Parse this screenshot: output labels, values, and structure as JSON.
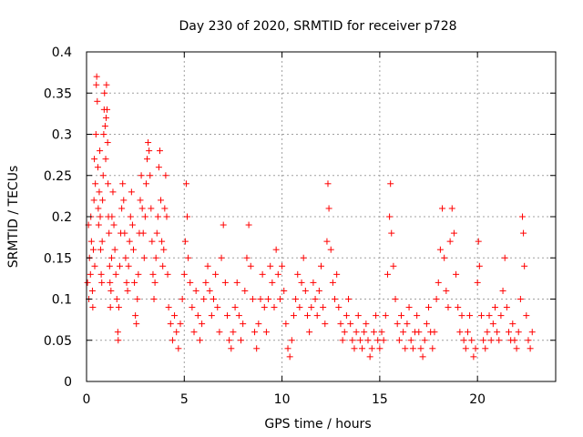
{
  "chart_data": {
    "type": "scatter",
    "title": "Day 230 of 2020, SRMTID for receiver p728",
    "xlabel": "GPS time / hours",
    "ylabel": "SRMTID / TECUs",
    "xlim": [
      0,
      24
    ],
    "ylim": [
      0,
      0.4
    ],
    "xticks": [
      0,
      5,
      10,
      15,
      20
    ],
    "xtick_labels": [
      "0",
      "5",
      "10",
      "15",
      "20"
    ],
    "yticks": [
      0,
      0.05,
      0.1,
      0.15,
      0.2,
      0.25,
      0.3,
      0.35,
      0.4
    ],
    "ytick_labels": [
      "0",
      "0.05",
      "0.1",
      "0.15",
      "0.2",
      "0.25",
      "0.3",
      "0.35",
      "0.4"
    ],
    "grid": true,
    "marker": "plus",
    "color": "#ff0000",
    "series": [
      {
        "name": "SRMTID",
        "points": [
          [
            0.05,
            0.12
          ],
          [
            0.1,
            0.19
          ],
          [
            0.12,
            0.1
          ],
          [
            0.15,
            0.15
          ],
          [
            0.2,
            0.13
          ],
          [
            0.22,
            0.2
          ],
          [
            0.25,
            0.17
          ],
          [
            0.3,
            0.11
          ],
          [
            0.32,
            0.09
          ],
          [
            0.35,
            0.16
          ],
          [
            0.38,
            0.22
          ],
          [
            0.4,
            0.27
          ],
          [
            0.42,
            0.14
          ],
          [
            0.45,
            0.24
          ],
          [
            0.48,
            0.3
          ],
          [
            0.5,
            0.36
          ],
          [
            0.52,
            0.37
          ],
          [
            0.55,
            0.34
          ],
          [
            0.58,
            0.26
          ],
          [
            0.6,
            0.21
          ],
          [
            0.62,
            0.19
          ],
          [
            0.65,
            0.23
          ],
          [
            0.68,
            0.28
          ],
          [
            0.7,
            0.2
          ],
          [
            0.72,
            0.16
          ],
          [
            0.75,
            0.13
          ],
          [
            0.78,
            0.12
          ],
          [
            0.8,
            0.17
          ],
          [
            0.82,
            0.22
          ],
          [
            0.85,
            0.25
          ],
          [
            0.88,
            0.3
          ],
          [
            0.9,
            0.33
          ],
          [
            0.92,
            0.35
          ],
          [
            0.95,
            0.31
          ],
          [
            0.98,
            0.27
          ],
          [
            1.0,
            0.32
          ],
          [
            1.02,
            0.36
          ],
          [
            1.05,
            0.33
          ],
          [
            1.08,
            0.29
          ],
          [
            1.1,
            0.24
          ],
          [
            1.12,
            0.2
          ],
          [
            1.15,
            0.18
          ],
          [
            1.18,
            0.14
          ],
          [
            1.2,
            0.12
          ],
          [
            1.22,
            0.09
          ],
          [
            1.25,
            0.11
          ],
          [
            1.28,
            0.15
          ],
          [
            1.3,
            0.2
          ],
          [
            1.35,
            0.23
          ],
          [
            1.4,
            0.19
          ],
          [
            1.45,
            0.16
          ],
          [
            1.5,
            0.13
          ],
          [
            1.55,
            0.1
          ],
          [
            1.6,
            0.06
          ],
          [
            1.62,
            0.05
          ],
          [
            1.65,
            0.09
          ],
          [
            1.7,
            0.14
          ],
          [
            1.75,
            0.18
          ],
          [
            1.8,
            0.21
          ],
          [
            1.85,
            0.24
          ],
          [
            1.9,
            0.22
          ],
          [
            1.95,
            0.18
          ],
          [
            2.0,
            0.15
          ],
          [
            2.05,
            0.12
          ],
          [
            2.1,
            0.11
          ],
          [
            2.15,
            0.14
          ],
          [
            2.2,
            0.17
          ],
          [
            2.25,
            0.2
          ],
          [
            2.3,
            0.23
          ],
          [
            2.35,
            0.19
          ],
          [
            2.4,
            0.16
          ],
          [
            2.45,
            0.12
          ],
          [
            2.5,
            0.08
          ],
          [
            2.55,
            0.07
          ],
          [
            2.6,
            0.1
          ],
          [
            2.65,
            0.13
          ],
          [
            2.7,
            0.18
          ],
          [
            2.75,
            0.22
          ],
          [
            2.8,
            0.25
          ],
          [
            2.85,
            0.21
          ],
          [
            2.9,
            0.18
          ],
          [
            2.95,
            0.15
          ],
          [
            3.0,
            0.2
          ],
          [
            3.05,
            0.24
          ],
          [
            3.1,
            0.27
          ],
          [
            3.15,
            0.29
          ],
          [
            3.2,
            0.28
          ],
          [
            3.25,
            0.25
          ],
          [
            3.3,
            0.21
          ],
          [
            3.35,
            0.17
          ],
          [
            3.4,
            0.13
          ],
          [
            3.45,
            0.1
          ],
          [
            3.5,
            0.12
          ],
          [
            3.55,
            0.15
          ],
          [
            3.6,
            0.18
          ],
          [
            3.65,
            0.2
          ],
          [
            3.7,
            0.26
          ],
          [
            3.75,
            0.28
          ],
          [
            3.8,
            0.22
          ],
          [
            3.85,
            0.17
          ],
          [
            3.9,
            0.14
          ],
          [
            3.95,
            0.16
          ],
          [
            4.0,
            0.21
          ],
          [
            4.05,
            0.25
          ],
          [
            4.1,
            0.2
          ],
          [
            4.15,
            0.13
          ],
          [
            4.2,
            0.09
          ],
          [
            4.3,
            0.07
          ],
          [
            4.4,
            0.05
          ],
          [
            4.5,
            0.08
          ],
          [
            4.6,
            0.06
          ],
          [
            4.7,
            0.04
          ],
          [
            4.8,
            0.07
          ],
          [
            4.9,
            0.1
          ],
          [
            5.0,
            0.13
          ],
          [
            5.05,
            0.17
          ],
          [
            5.1,
            0.24
          ],
          [
            5.15,
            0.2
          ],
          [
            5.2,
            0.15
          ],
          [
            5.3,
            0.12
          ],
          [
            5.4,
            0.09
          ],
          [
            5.5,
            0.06
          ],
          [
            5.6,
            0.11
          ],
          [
            5.7,
            0.08
          ],
          [
            5.8,
            0.05
          ],
          [
            5.9,
            0.07
          ],
          [
            6.0,
            0.1
          ],
          [
            6.1,
            0.12
          ],
          [
            6.2,
            0.14
          ],
          [
            6.3,
            0.11
          ],
          [
            6.4,
            0.08
          ],
          [
            6.5,
            0.1
          ],
          [
            6.6,
            0.13
          ],
          [
            6.7,
            0.09
          ],
          [
            6.8,
            0.06
          ],
          [
            6.9,
            0.15
          ],
          [
            7.0,
            0.19
          ],
          [
            7.1,
            0.12
          ],
          [
            7.2,
            0.08
          ],
          [
            7.3,
            0.05
          ],
          [
            7.4,
            0.04
          ],
          [
            7.5,
            0.06
          ],
          [
            7.6,
            0.09
          ],
          [
            7.7,
            0.12
          ],
          [
            7.8,
            0.08
          ],
          [
            7.9,
            0.05
          ],
          [
            8.0,
            0.07
          ],
          [
            8.1,
            0.11
          ],
          [
            8.2,
            0.15
          ],
          [
            8.3,
            0.19
          ],
          [
            8.4,
            0.14
          ],
          [
            8.5,
            0.1
          ],
          [
            8.6,
            0.06
          ],
          [
            8.7,
            0.04
          ],
          [
            8.8,
            0.07
          ],
          [
            8.9,
            0.1
          ],
          [
            9.0,
            0.13
          ],
          [
            9.1,
            0.09
          ],
          [
            9.2,
            0.06
          ],
          [
            9.3,
            0.1
          ],
          [
            9.4,
            0.14
          ],
          [
            9.5,
            0.12
          ],
          [
            9.6,
            0.09
          ],
          [
            9.7,
            0.16
          ],
          [
            9.8,
            0.13
          ],
          [
            9.9,
            0.1
          ],
          [
            10.0,
            0.14
          ],
          [
            10.1,
            0.11
          ],
          [
            10.2,
            0.07
          ],
          [
            10.3,
            0.04
          ],
          [
            10.4,
            0.03
          ],
          [
            10.5,
            0.05
          ],
          [
            10.6,
            0.08
          ],
          [
            10.7,
            0.1
          ],
          [
            10.8,
            0.13
          ],
          [
            10.9,
            0.09
          ],
          [
            11.0,
            0.12
          ],
          [
            11.1,
            0.15
          ],
          [
            11.2,
            0.11
          ],
          [
            11.3,
            0.08
          ],
          [
            11.4,
            0.06
          ],
          [
            11.5,
            0.09
          ],
          [
            11.6,
            0.12
          ],
          [
            11.7,
            0.1
          ],
          [
            11.8,
            0.08
          ],
          [
            11.9,
            0.11
          ],
          [
            12.0,
            0.14
          ],
          [
            12.1,
            0.09
          ],
          [
            12.2,
            0.07
          ],
          [
            12.3,
            0.17
          ],
          [
            12.35,
            0.24
          ],
          [
            12.4,
            0.21
          ],
          [
            12.5,
            0.16
          ],
          [
            12.6,
            0.12
          ],
          [
            12.7,
            0.1
          ],
          [
            12.8,
            0.13
          ],
          [
            12.9,
            0.09
          ],
          [
            13.0,
            0.07
          ],
          [
            13.1,
            0.05
          ],
          [
            13.2,
            0.06
          ],
          [
            13.3,
            0.08
          ],
          [
            13.4,
            0.1
          ],
          [
            13.5,
            0.07
          ],
          [
            13.6,
            0.05
          ],
          [
            13.7,
            0.04
          ],
          [
            13.8,
            0.06
          ],
          [
            13.9,
            0.08
          ],
          [
            14.0,
            0.05
          ],
          [
            14.1,
            0.04
          ],
          [
            14.2,
            0.06
          ],
          [
            14.3,
            0.07
          ],
          [
            14.4,
            0.05
          ],
          [
            14.5,
            0.03
          ],
          [
            14.6,
            0.04
          ],
          [
            14.7,
            0.06
          ],
          [
            14.8,
            0.08
          ],
          [
            14.9,
            0.05
          ],
          [
            15.0,
            0.04
          ],
          [
            15.1,
            0.06
          ],
          [
            15.2,
            0.05
          ],
          [
            15.3,
            0.08
          ],
          [
            15.4,
            0.13
          ],
          [
            15.5,
            0.2
          ],
          [
            15.55,
            0.24
          ],
          [
            15.6,
            0.18
          ],
          [
            15.7,
            0.14
          ],
          [
            15.8,
            0.1
          ],
          [
            15.9,
            0.07
          ],
          [
            16.0,
            0.05
          ],
          [
            16.1,
            0.08
          ],
          [
            16.2,
            0.06
          ],
          [
            16.3,
            0.04
          ],
          [
            16.4,
            0.07
          ],
          [
            16.5,
            0.09
          ],
          [
            16.6,
            0.05
          ],
          [
            16.7,
            0.04
          ],
          [
            16.8,
            0.06
          ],
          [
            16.9,
            0.08
          ],
          [
            17.0,
            0.06
          ],
          [
            17.1,
            0.04
          ],
          [
            17.2,
            0.03
          ],
          [
            17.3,
            0.05
          ],
          [
            17.4,
            0.07
          ],
          [
            17.5,
            0.09
          ],
          [
            17.6,
            0.06
          ],
          [
            17.7,
            0.04
          ],
          [
            17.8,
            0.06
          ],
          [
            17.9,
            0.1
          ],
          [
            18.0,
            0.12
          ],
          [
            18.1,
            0.16
          ],
          [
            18.2,
            0.21
          ],
          [
            18.3,
            0.15
          ],
          [
            18.4,
            0.11
          ],
          [
            18.5,
            0.09
          ],
          [
            18.6,
            0.17
          ],
          [
            18.7,
            0.21
          ],
          [
            18.8,
            0.18
          ],
          [
            18.9,
            0.13
          ],
          [
            19.0,
            0.09
          ],
          [
            19.1,
            0.06
          ],
          [
            19.2,
            0.08
          ],
          [
            19.3,
            0.05
          ],
          [
            19.4,
            0.04
          ],
          [
            19.5,
            0.06
          ],
          [
            19.6,
            0.08
          ],
          [
            19.7,
            0.05
          ],
          [
            19.8,
            0.03
          ],
          [
            19.9,
            0.04
          ],
          [
            20.0,
            0.12
          ],
          [
            20.05,
            0.17
          ],
          [
            20.1,
            0.14
          ],
          [
            20.2,
            0.08
          ],
          [
            20.3,
            0.05
          ],
          [
            20.4,
            0.04
          ],
          [
            20.5,
            0.06
          ],
          [
            20.6,
            0.08
          ],
          [
            20.7,
            0.05
          ],
          [
            20.8,
            0.07
          ],
          [
            20.9,
            0.09
          ],
          [
            21.0,
            0.06
          ],
          [
            21.1,
            0.05
          ],
          [
            21.2,
            0.08
          ],
          [
            21.3,
            0.11
          ],
          [
            21.4,
            0.15
          ],
          [
            21.5,
            0.09
          ],
          [
            21.6,
            0.06
          ],
          [
            21.7,
            0.05
          ],
          [
            21.8,
            0.07
          ],
          [
            21.9,
            0.05
          ],
          [
            22.0,
            0.04
          ],
          [
            22.1,
            0.06
          ],
          [
            22.2,
            0.1
          ],
          [
            22.3,
            0.2
          ],
          [
            22.35,
            0.18
          ],
          [
            22.4,
            0.14
          ],
          [
            22.5,
            0.08
          ],
          [
            22.6,
            0.05
          ],
          [
            22.7,
            0.04
          ],
          [
            22.8,
            0.06
          ]
        ]
      }
    ]
  }
}
